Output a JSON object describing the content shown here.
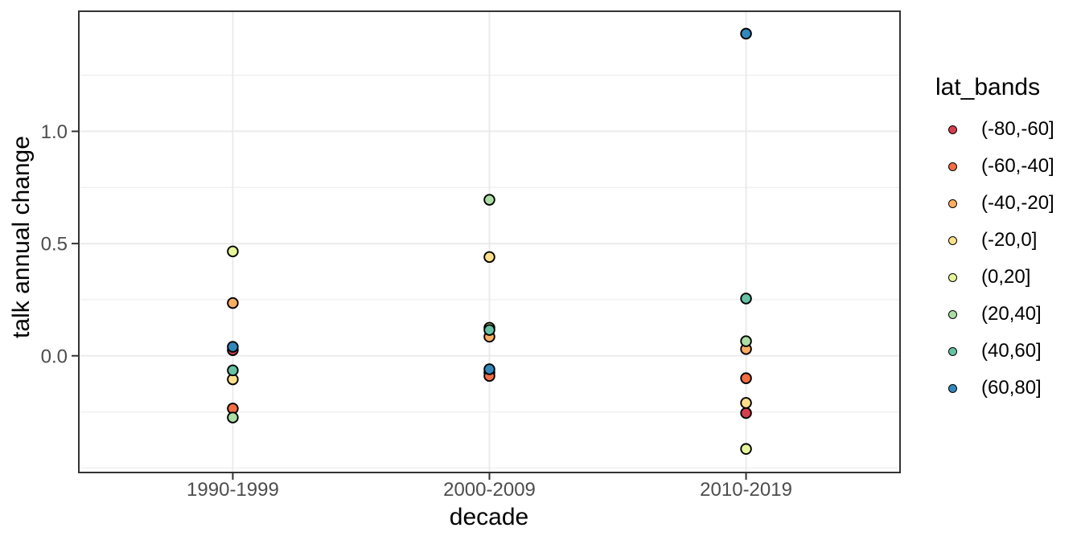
{
  "chart_data": {
    "type": "scatter",
    "title": "",
    "xlabel": "decade",
    "ylabel": "talk annual change",
    "legend_title": "lat_bands",
    "legend_position": "right",
    "grid": true,
    "categories": [
      "1990-1999",
      "2000-2009",
      "2010-2019"
    ],
    "ylim": [
      -0.52,
      1.535
    ],
    "y_major_ticks": [
      {
        "value": 0.0,
        "label": "0.0"
      },
      {
        "value": 0.5,
        "label": "0.5"
      },
      {
        "value": 1.0,
        "label": "1.0"
      }
    ],
    "y_minor_gridlines": [
      -0.5,
      -0.25,
      0.25,
      0.75,
      1.25
    ],
    "series": [
      {
        "name": "(-80,-60]",
        "color": "#d53e4f",
        "values": [
          0.025,
          -0.075,
          -0.255
        ]
      },
      {
        "name": "(-60,-40]",
        "color": "#f46d43",
        "values": [
          -0.235,
          -0.09,
          -0.1
        ]
      },
      {
        "name": "(-40,-20]",
        "color": "#fdae61",
        "values": [
          0.235,
          0.085,
          0.03
        ]
      },
      {
        "name": "(-20,0]",
        "color": "#fee08b",
        "values": [
          -0.105,
          0.44,
          -0.21
        ]
      },
      {
        "name": "(0,20]",
        "color": "#e6f598",
        "values": [
          0.465,
          0.125,
          -0.415
        ]
      },
      {
        "name": "(20,40]",
        "color": "#abdda4",
        "values": [
          -0.275,
          0.695,
          0.065
        ]
      },
      {
        "name": "(40,60]",
        "color": "#66c2a5",
        "values": [
          -0.065,
          0.115,
          0.255
        ]
      },
      {
        "name": "(60,80]",
        "color": "#3288bd",
        "values": [
          0.04,
          -0.06,
          1.435
        ]
      }
    ]
  },
  "style": {
    "background": "#ffffff",
    "grid_color": "#ebebeb",
    "panel_border": "#333333",
    "tick_color": "#333333",
    "tick_label_color": "#4d4d4d",
    "title_color": "#000000",
    "point_stroke": "#000000"
  }
}
